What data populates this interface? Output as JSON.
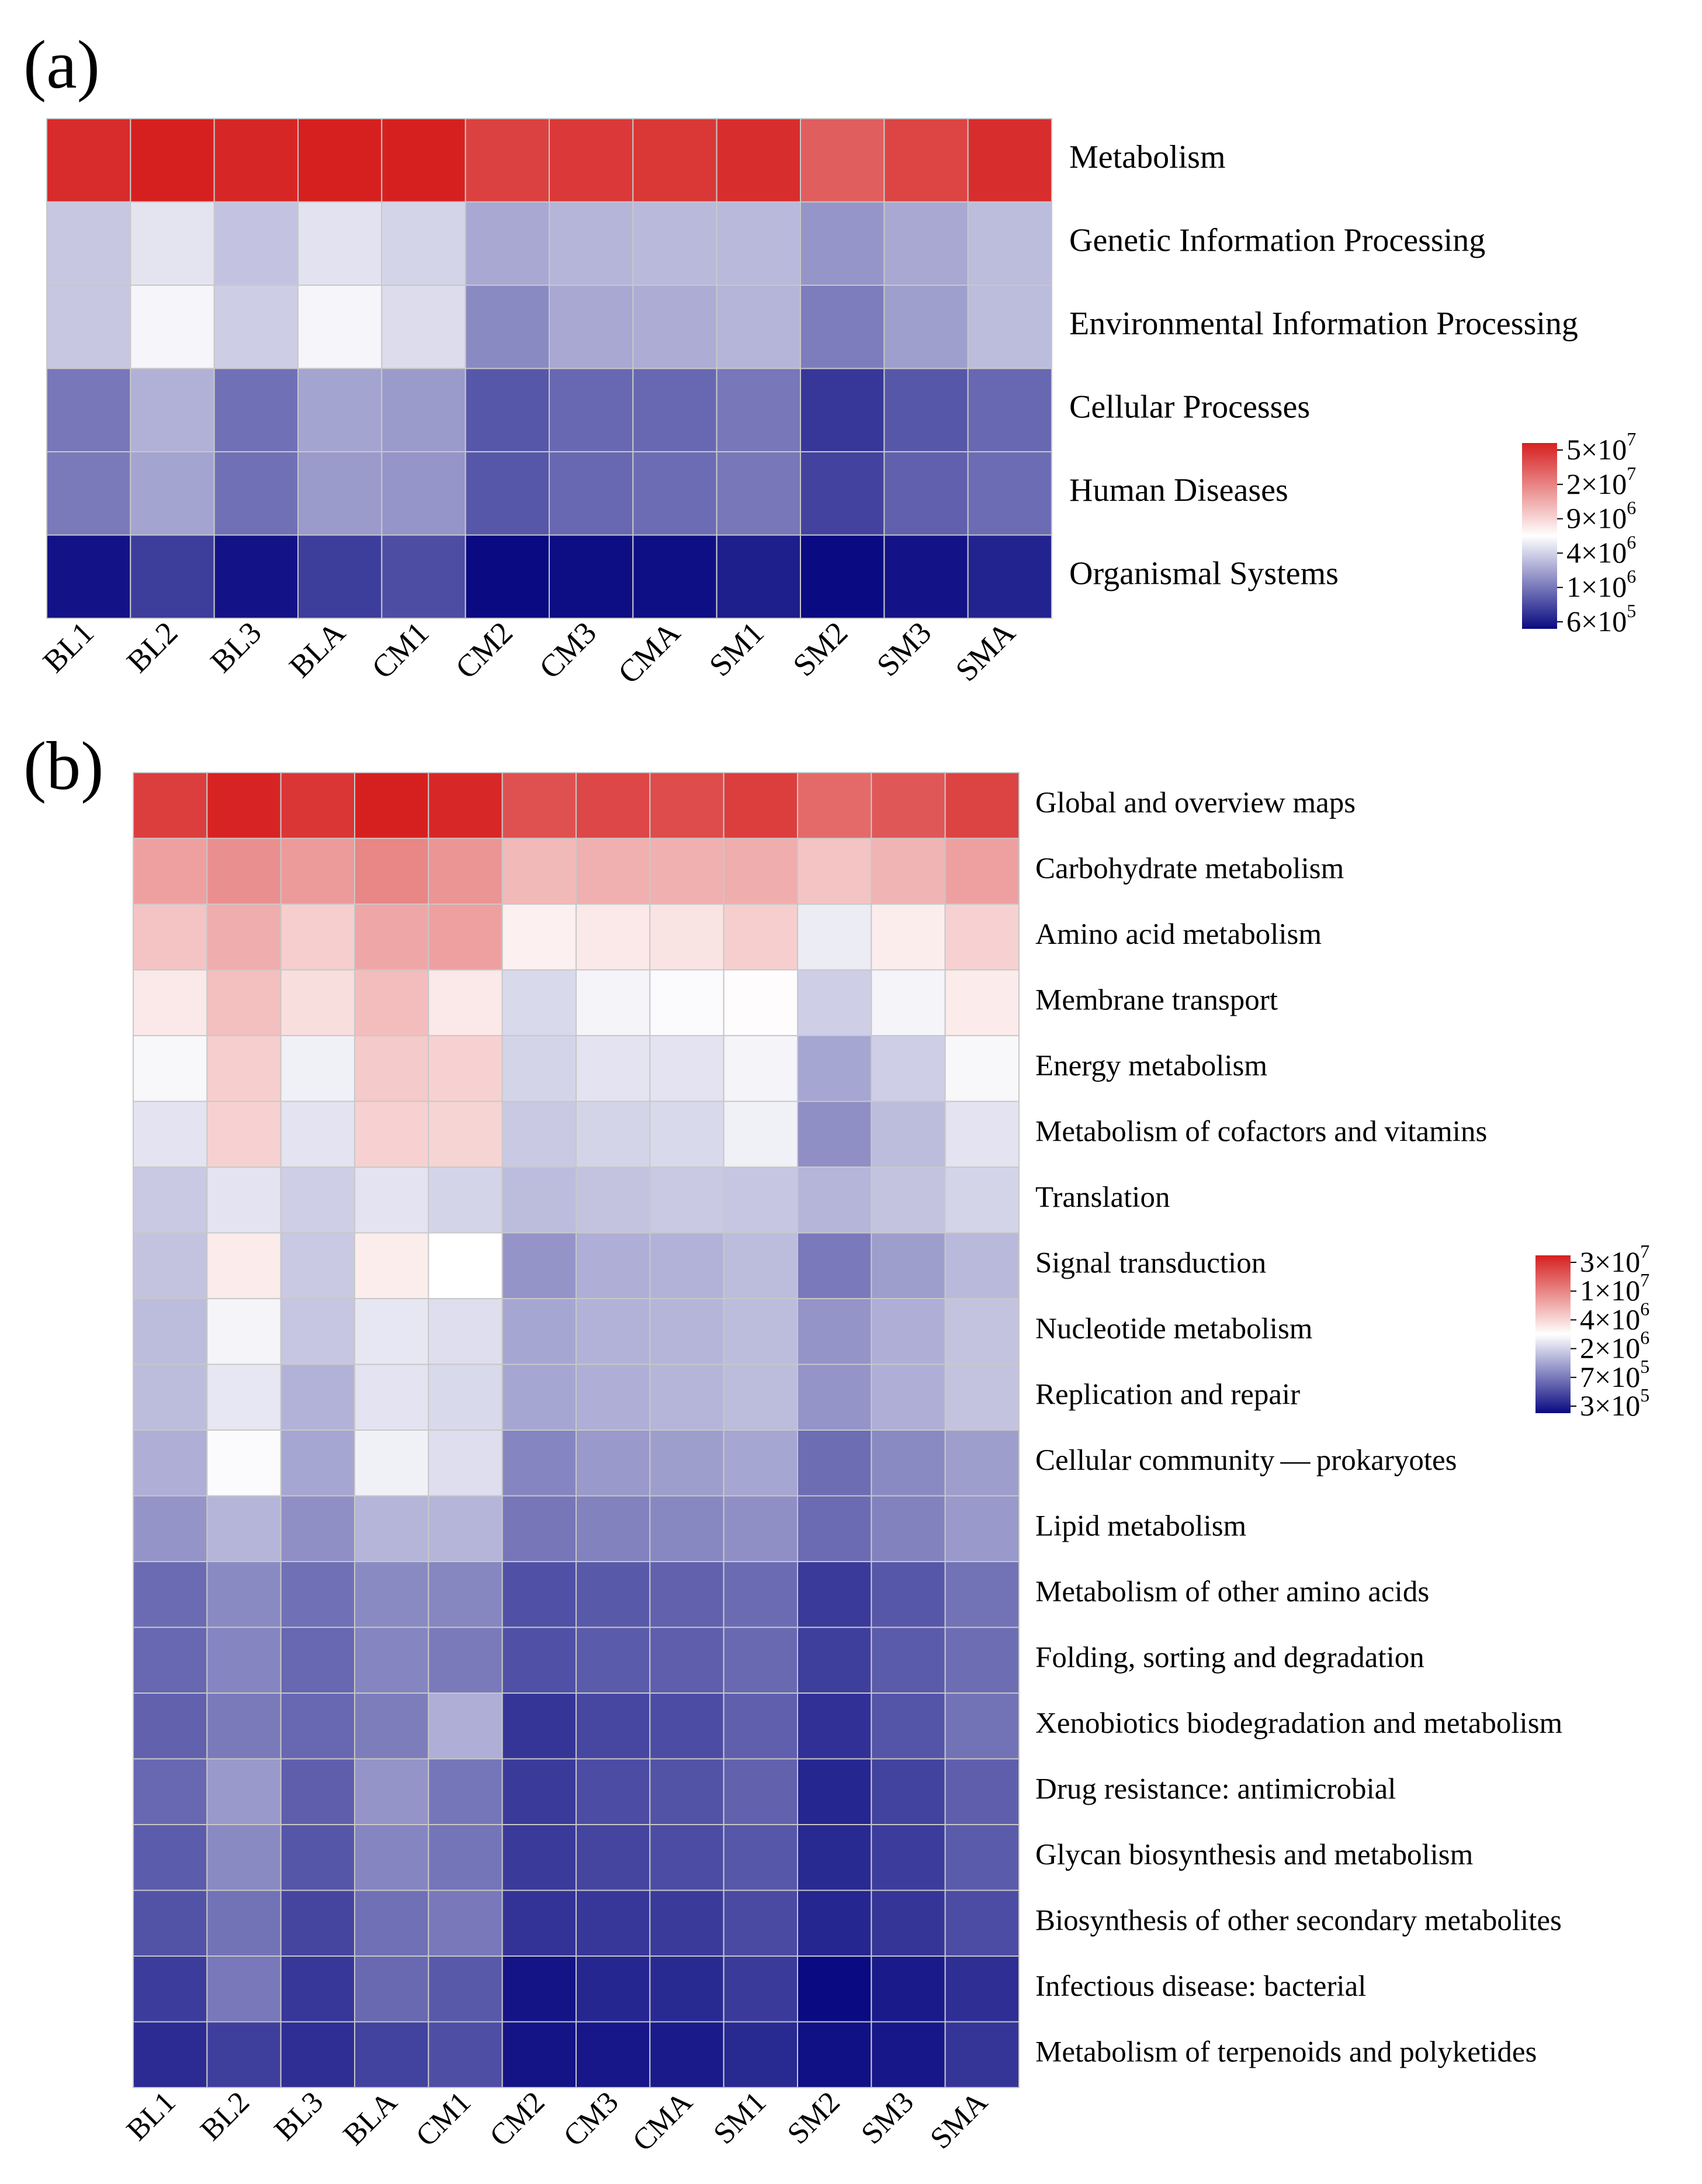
{
  "chart_data": [
    {
      "type": "heatmap",
      "panel_label": "(a)",
      "columns": [
        "BL1",
        "BL2",
        "BL3",
        "BLA",
        "CM1",
        "CM2",
        "CM3",
        "CMA",
        "SM1",
        "SM2",
        "SM3",
        "SMA"
      ],
      "rows": [
        "Metabolism",
        "Genetic Information Processing",
        "Environmental Information Processing",
        "Cellular Processes",
        "Human Diseases",
        "Organismal Systems"
      ],
      "values": [
        [
          45000000,
          52000000,
          47000000,
          53000000,
          51000000,
          36000000,
          39000000,
          40000000,
          44000000,
          27000000,
          35000000,
          44000000
        ],
        [
          3300000,
          4300000,
          3200000,
          4200000,
          3700000,
          2500000,
          2800000,
          2900000,
          2900000,
          2100000,
          2500000,
          3000000
        ],
        [
          3300000,
          5000000,
          3500000,
          5000000,
          4000000,
          1900000,
          2500000,
          2600000,
          2800000,
          1700000,
          2300000,
          3000000
        ],
        [
          1600000,
          2700000,
          1500000,
          2400000,
          2200000,
          1200000,
          1400000,
          1400000,
          1600000,
          900000,
          1200000,
          1400000
        ],
        [
          1650000,
          2400000,
          1500000,
          2200000,
          2100000,
          1200000,
          1400000,
          1450000,
          1600000,
          1000000,
          1300000,
          1450000
        ],
        [
          650000,
          950000,
          650000,
          950000,
          1100000,
          600000,
          620000,
          630000,
          720000,
          600000,
          650000,
          750000
        ]
      ],
      "legend": {
        "labels": [
          {
            "mantissa": "5×10",
            "exp": "7"
          },
          {
            "mantissa": "2×10",
            "exp": "7"
          },
          {
            "mantissa": "9×10",
            "exp": "6"
          },
          {
            "mantissa": "4×10",
            "exp": "6"
          },
          {
            "mantissa": "1×10",
            "exp": "6"
          },
          {
            "mantissa": "6×10",
            "exp": "5"
          }
        ],
        "min": 600000,
        "max": 50000000,
        "colors": [
          "#0a0a82",
          "#ffffff",
          "#d62020"
        ]
      }
    },
    {
      "type": "heatmap",
      "panel_label": "(b)",
      "columns": [
        "BL1",
        "BL2",
        "BL3",
        "BLA",
        "CM1",
        "CM2",
        "CM3",
        "CMA",
        "SM1",
        "SM2",
        "SM3",
        "SMA"
      ],
      "rows": [
        "Global and overview maps",
        "Carbohydrate metabolism",
        "Amino acid metabolism",
        "Membrane transport",
        "Energy metabolism",
        "Metabolism of cofactors and vitamins",
        "Translation",
        "Signal transduction",
        "Nucleotide metabolism",
        "Replication and repair",
        "Cellular community — prokaryotes",
        "Lipid metabolism",
        "Metabolism of other amino acids",
        "Folding, sorting and degradation",
        "Xenobiotics biodegradation and metabolism",
        "Drug resistance: antimicrobial",
        "Glycan biosynthesis and metabolism",
        "Biosynthesis of other secondary metabolites",
        "Infectious disease: bacterial",
        "Metabolism of terpenoids and polyketides"
      ],
      "values": [
        [
          22000000,
          29000000,
          24000000,
          30000000,
          28000000,
          18000000,
          20000000,
          19000000,
          22000000,
          14000000,
          17000000,
          21000000
        ],
        [
          8000000,
          9500000,
          8500000,
          10500000,
          9000000,
          6200000,
          6800000,
          6800000,
          7000000,
          5500000,
          6500000,
          8000000
        ],
        [
          5500000,
          7000000,
          5000000,
          7500000,
          8000000,
          3500000,
          3800000,
          4000000,
          5000000,
          2500000,
          3600000,
          4800000
        ],
        [
          3800000,
          5800000,
          4200000,
          5900000,
          3800000,
          2100000,
          2700000,
          2900000,
          3100000,
          1900000,
          2700000,
          3700000
        ],
        [
          2800000,
          5000000,
          2600000,
          5200000,
          4800000,
          2000000,
          2300000,
          2300000,
          2700000,
          1300000,
          1900000,
          2800000
        ],
        [
          2300000,
          4800000,
          2300000,
          4800000,
          4700000,
          1800000,
          2000000,
          2100000,
          2600000,
          1050000,
          1600000,
          2300000
        ],
        [
          1800000,
          2300000,
          1900000,
          2300000,
          2000000,
          1600000,
          1700000,
          1800000,
          1750000,
          1500000,
          1700000,
          2000000
        ],
        [
          1700000,
          3700000,
          1800000,
          3600000,
          3000000,
          1100000,
          1400000,
          1450000,
          1600000,
          850000,
          1200000,
          1550000
        ],
        [
          1600000,
          2700000,
          1750000,
          2400000,
          2200000,
          1300000,
          1450000,
          1500000,
          1600000,
          1100000,
          1400000,
          1700000
        ],
        [
          1600000,
          2400000,
          1450000,
          2300000,
          2100000,
          1300000,
          1400000,
          1500000,
          1600000,
          1100000,
          1400000,
          1700000
        ],
        [
          1400000,
          2900000,
          1300000,
          2600000,
          2200000,
          950000,
          1150000,
          1200000,
          1300000,
          760000,
          1000000,
          1200000
        ],
        [
          1100000,
          1500000,
          1050000,
          1500000,
          1500000,
          830000,
          930000,
          970000,
          1050000,
          750000,
          930000,
          1150000
        ],
        [
          750000,
          1000000,
          780000,
          1000000,
          960000,
          580000,
          630000,
          680000,
          750000,
          470000,
          620000,
          800000
        ],
        [
          720000,
          950000,
          720000,
          950000,
          860000,
          580000,
          640000,
          660000,
          730000,
          490000,
          640000,
          760000
        ],
        [
          680000,
          860000,
          720000,
          880000,
          1400000,
          450000,
          530000,
          560000,
          670000,
          430000,
          600000,
          800000
        ],
        [
          720000,
          1150000,
          660000,
          1100000,
          820000,
          470000,
          560000,
          590000,
          680000,
          390000,
          510000,
          660000
        ],
        [
          650000,
          1000000,
          610000,
          950000,
          810000,
          470000,
          520000,
          560000,
          620000,
          400000,
          480000,
          640000
        ],
        [
          590000,
          800000,
          520000,
          780000,
          840000,
          440000,
          460000,
          470000,
          550000,
          390000,
          450000,
          560000
        ],
        [
          480000,
          840000,
          460000,
          730000,
          630000,
          330000,
          390000,
          400000,
          470000,
          300000,
          350000,
          420000
        ],
        [
          410000,
          490000,
          420000,
          510000,
          570000,
          330000,
          340000,
          350000,
          400000,
          320000,
          340000,
          450000
        ]
      ],
      "legend": {
        "labels": [
          {
            "mantissa": "3×10",
            "exp": "7"
          },
          {
            "mantissa": "1×10",
            "exp": "7"
          },
          {
            "mantissa": "4×10",
            "exp": "6"
          },
          {
            "mantissa": "2×10",
            "exp": "6"
          },
          {
            "mantissa": "7×10",
            "exp": "5"
          },
          {
            "mantissa": "3×10",
            "exp": "5"
          }
        ],
        "min": 300000,
        "max": 30000000,
        "colors": [
          "#0a0a82",
          "#ffffff",
          "#d62020"
        ]
      }
    }
  ]
}
